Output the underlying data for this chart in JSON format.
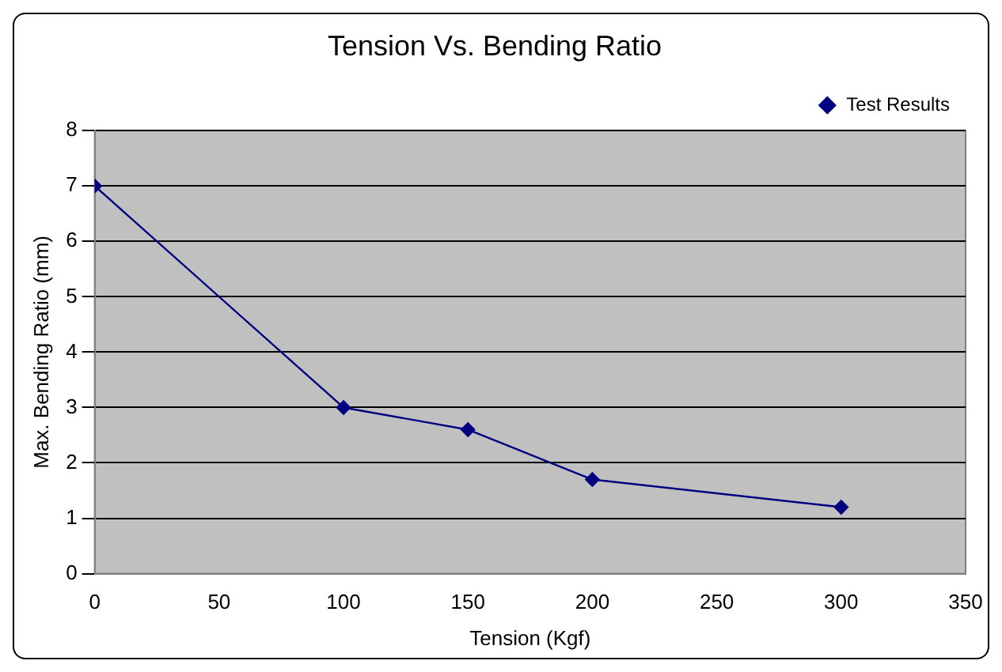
{
  "chart_data": {
    "type": "line",
    "title": "Tension Vs. Bending Ratio",
    "xlabel": "Tension (Kgf)",
    "ylabel": "Max. Bending Ratio (mm)",
    "x": [
      0,
      100,
      150,
      200,
      300
    ],
    "series": [
      {
        "name": "Test Results",
        "color": "#000080",
        "values": [
          7,
          3,
          2.6,
          1.7,
          1.2
        ]
      }
    ],
    "xlim": [
      0,
      350
    ],
    "xticks": [
      0,
      50,
      100,
      150,
      200,
      250,
      300,
      350
    ],
    "ylim": [
      0,
      8
    ],
    "yticks": [
      0,
      1,
      2,
      3,
      4,
      5,
      6,
      7,
      8
    ],
    "grid": "y",
    "legend": "top right",
    "marker": "diamond",
    "line_style": "solid"
  }
}
